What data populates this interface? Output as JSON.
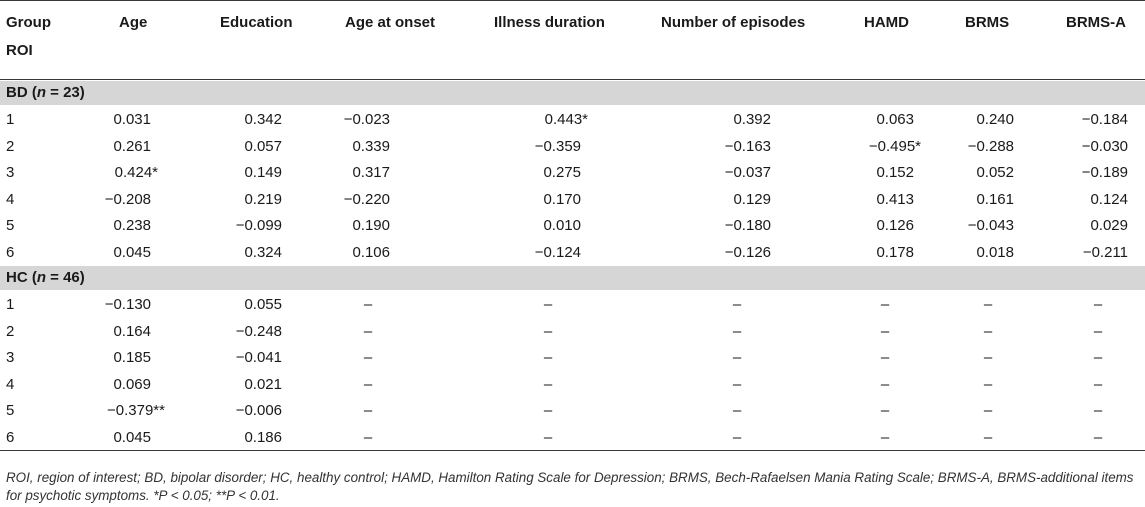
{
  "headers": {
    "group": "Group",
    "roi": "ROI",
    "age": "Age",
    "education": "Education",
    "age_onset": "Age at onset",
    "illness_duration": "Illness duration",
    "episodes": "Number of episodes",
    "hamd": "HAMD",
    "brms": "BRMS",
    "brmsa": "BRMS-A"
  },
  "groups": [
    {
      "label": "BD (",
      "n_label": "n",
      "n_suffix": " = 23)",
      "rows": [
        {
          "roi": "1",
          "cells": [
            "0.031",
            "0.342",
            "−0.023",
            "0.443*",
            "0.392",
            "0.063",
            "0.240",
            "−0.184"
          ]
        },
        {
          "roi": "2",
          "cells": [
            "0.261",
            "0.057",
            "0.339",
            "−0.359",
            "−0.163",
            "−0.495*",
            "−0.288",
            "−0.030"
          ]
        },
        {
          "roi": "3",
          "cells": [
            "0.424*",
            "0.149",
            "0.317",
            "0.275",
            "−0.037",
            "0.152",
            "0.052",
            "−0.189"
          ]
        },
        {
          "roi": "4",
          "cells": [
            "−0.208",
            "0.219",
            "−0.220",
            "0.170",
            "0.129",
            "0.413",
            "0.161",
            "0.124"
          ]
        },
        {
          "roi": "5",
          "cells": [
            "0.238",
            "−0.099",
            "0.190",
            "0.010",
            "−0.180",
            "0.126",
            "−0.043",
            "0.029"
          ]
        },
        {
          "roi": "6",
          "cells": [
            "0.045",
            "0.324",
            "0.106",
            "−0.124",
            "−0.126",
            "0.178",
            "0.018",
            "−0.211"
          ]
        }
      ]
    },
    {
      "label": "HC (",
      "n_label": "n",
      "n_suffix": " = 46)",
      "rows": [
        {
          "roi": "1",
          "cells": [
            "−0.130",
            "0.055",
            "–",
            "–",
            "–",
            "–",
            "–",
            "–"
          ]
        },
        {
          "roi": "2",
          "cells": [
            "0.164",
            "−0.248",
            "–",
            "–",
            "–",
            "–",
            "–",
            "–"
          ]
        },
        {
          "roi": "3",
          "cells": [
            "0.185",
            "−0.041",
            "–",
            "–",
            "–",
            "–",
            "–",
            "–"
          ]
        },
        {
          "roi": "4",
          "cells": [
            "0.069",
            "0.021",
            "–",
            "–",
            "–",
            "–",
            "–",
            "–"
          ]
        },
        {
          "roi": "5",
          "cells": [
            "−0.379**",
            "−0.006",
            "–",
            "–",
            "–",
            "–",
            "–",
            "–"
          ]
        },
        {
          "roi": "6",
          "cells": [
            "0.045",
            "0.186",
            "–",
            "–",
            "–",
            "–",
            "–",
            "–"
          ]
        }
      ]
    }
  ],
  "footnote": "ROI, region of interest; BD, bipolar disorder; HC, healthy control; HAMD, Hamilton Rating Scale for Depression; BRMS, Bech-Rafaelsen Mania Rating Scale; BRMS-A, BRMS-additional items for psychotic symptoms. *P < 0.05; **P < 0.01."
}
